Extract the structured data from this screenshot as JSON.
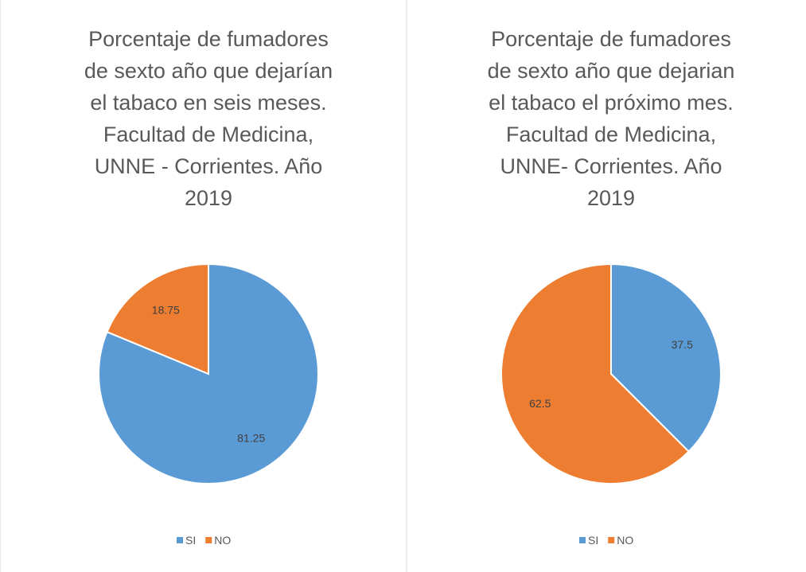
{
  "chart_data": [
    {
      "type": "pie",
      "title": [
        "Porcentaje de fumadores",
        "de sexto año que dejarían",
        "el tabaco en seis meses.",
        "Facultad de Medicina,",
        "UNNE - Corrientes. Año",
        "2019"
      ],
      "categories": [
        "SI",
        "NO"
      ],
      "values": [
        81.25,
        18.75
      ],
      "colors": [
        "#5b9bd5",
        "#ed7d31"
      ],
      "legend": "bottom"
    },
    {
      "type": "pie",
      "title": [
        "Porcentaje  de  fumadores",
        "de sexto año que dejarian",
        "el tabaco el próximo mes.",
        "Facultad de Medicina,",
        "UNNE- Corrientes. Año",
        "2019"
      ],
      "categories": [
        "SI",
        "NO"
      ],
      "values": [
        37.5,
        62.5
      ],
      "colors": [
        "#5b9bd5",
        "#ed7d31"
      ],
      "legend": "bottom"
    }
  ]
}
